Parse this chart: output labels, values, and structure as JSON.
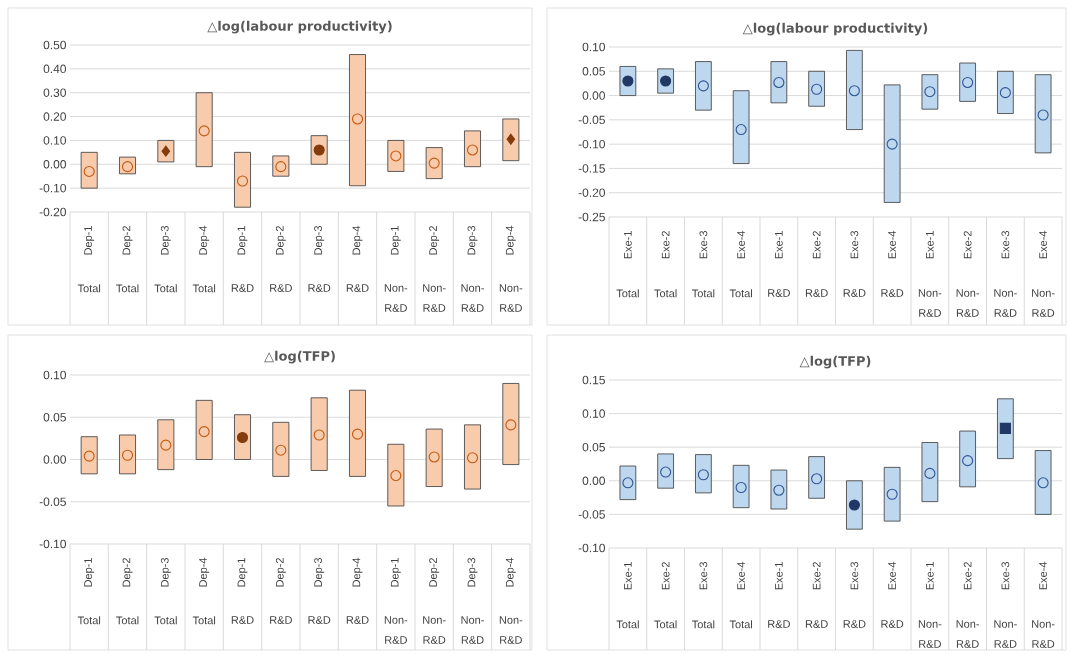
{
  "chart_data": [
    {
      "type": "bar",
      "title": "△log(labour productivity)",
      "grid": "y",
      "categories": [
        "Dep-1",
        "Dep-2",
        "Dep-3",
        "Dep-4",
        "Dep-1",
        "Dep-2",
        "Dep-3",
        "Dep-4",
        "Dep-1",
        "Dep-2",
        "Dep-3",
        "Dep-4"
      ],
      "annotations": [
        "Total",
        "Total",
        "Total",
        "Total",
        "R&D",
        "R&D",
        "R&D",
        "R&D",
        "Non-R&D",
        "Non-R&D",
        "Non-R&D",
        "Non-R&D"
      ],
      "ylim": [
        -0.2,
        0.5
      ],
      "yticks": [
        {
          "value": -0.2,
          "label": "-0.20"
        },
        {
          "value": -0.1,
          "label": "-0.10"
        },
        {
          "value": 0,
          "label": "0.00"
        },
        {
          "value": 0.1,
          "label": "0.10"
        },
        {
          "value": 0.2,
          "label": "0.20"
        },
        {
          "value": 0.3,
          "label": "0.30"
        },
        {
          "value": 0.4,
          "label": "0.40"
        },
        {
          "value": 0.5,
          "label": "0.50"
        }
      ],
      "series": [
        {
          "type": "bar",
          "color": "#f8cbad",
          "base": [
            -0.1,
            -0.04,
            0.01,
            -0.01,
            -0.18,
            -0.05,
            0.0,
            -0.09,
            -0.03,
            -0.06,
            -0.01,
            0.015
          ],
          "values": [
            0.15,
            0.07,
            0.09,
            0.31,
            0.23,
            0.085,
            0.12,
            0.55,
            0.13,
            0.13,
            0.15,
            0.175
          ]
        },
        {
          "type": "scatter",
          "marker": "circle",
          "color": "#c55a11",
          "values": [
            -0.03,
            -0.01,
            null,
            0.14,
            -0.07,
            -0.01,
            null,
            0.19,
            0.035,
            0.005,
            0.06,
            null
          ]
        },
        {
          "type": "scatter",
          "marker": "diamond",
          "color": "#843c0c",
          "values": [
            null,
            null,
            0.055,
            null,
            null,
            null,
            null,
            null,
            null,
            null,
            null,
            0.105
          ]
        },
        {
          "type": "scatter",
          "marker": "circle",
          "color": "#843c0c",
          "values": [
            null,
            null,
            null,
            null,
            null,
            null,
            0.06,
            null,
            null,
            null,
            null,
            null
          ]
        }
      ]
    },
    {
      "type": "bar",
      "title": "△log(labour productivity)",
      "grid": "y",
      "categories": [
        "Exe-1",
        "Exe-2",
        "Exe-3",
        "Exe-4",
        "Exe-1",
        "Exe-2",
        "Exe-3",
        "Exe-4",
        "Exe-1",
        "Exe-2",
        "Exe-3",
        "Exe-4"
      ],
      "annotations": [
        "Total",
        "Total",
        "Total",
        "Total",
        "R&D",
        "R&D",
        "R&D",
        "R&D",
        "Non-R&D",
        "Non-R&D",
        "Non-R&D",
        "Non-R&D"
      ],
      "ylim": [
        -0.25,
        0.1
      ],
      "yticks": [
        {
          "value": -0.25,
          "label": "-0.25"
        },
        {
          "value": -0.2,
          "label": "-0.20"
        },
        {
          "value": -0.15,
          "label": "-0.15"
        },
        {
          "value": -0.1,
          "label": "-0.10"
        },
        {
          "value": -0.05,
          "label": "-0.05"
        },
        {
          "value": 0,
          "label": "0.00"
        },
        {
          "value": 0.05,
          "label": "0.05"
        },
        {
          "value": 0.1,
          "label": "0.10"
        }
      ],
      "series": [
        {
          "type": "bar",
          "color": "#bdd7ee",
          "base": [
            0.0,
            0.005,
            -0.03,
            -0.14,
            -0.015,
            -0.022,
            -0.07,
            -0.22,
            -0.028,
            -0.012,
            -0.037,
            -0.118
          ],
          "values": [
            0.06,
            0.05,
            0.1,
            0.15,
            0.085,
            0.072,
            0.163,
            0.242,
            0.071,
            0.079,
            0.087,
            0.161
          ]
        },
        {
          "type": "scatter",
          "marker": "circle",
          "color": "#2f5597",
          "values": [
            null,
            null,
            0.02,
            -0.07,
            0.027,
            0.013,
            0.01,
            -0.1,
            0.008,
            0.027,
            0.006,
            -0.04
          ]
        },
        {
          "type": "scatter",
          "marker": "circle",
          "color": "#1f3864",
          "values": [
            0.03,
            0.03,
            null,
            null,
            null,
            null,
            null,
            null,
            null,
            null,
            null,
            null
          ]
        }
      ]
    },
    {
      "type": "bar",
      "title": "△log(TFP)",
      "grid": "y",
      "categories": [
        "Dep-1",
        "Dep-2",
        "Dep-3",
        "Dep-4",
        "Dep-1",
        "Dep-2",
        "Dep-3",
        "Dep-4",
        "Dep-1",
        "Dep-2",
        "Dep-3",
        "Dep-4"
      ],
      "annotations": [
        "Total",
        "Total",
        "Total",
        "Total",
        "R&D",
        "R&D",
        "R&D",
        "R&D",
        "Non-R&D",
        "Non-R&D",
        "Non-R&D",
        "Non-R&D"
      ],
      "ylim": [
        -0.1,
        0.1
      ],
      "yticks": [
        {
          "value": -0.1,
          "label": "-0.10"
        },
        {
          "value": -0.05,
          "label": "-0.05"
        },
        {
          "value": 0,
          "label": "0.00"
        },
        {
          "value": 0.05,
          "label": "0.05"
        },
        {
          "value": 0.1,
          "label": "0.10"
        }
      ],
      "series": [
        {
          "type": "bar",
          "color": "#f8cbad",
          "base": [
            -0.017,
            -0.017,
            -0.012,
            0.0,
            0.0,
            -0.02,
            -0.013,
            -0.02,
            -0.055,
            -0.032,
            -0.035,
            -0.006
          ],
          "values": [
            0.044,
            0.046,
            0.059,
            0.07,
            0.053,
            0.064,
            0.086,
            0.102,
            0.073,
            0.068,
            0.076,
            0.096
          ]
        },
        {
          "type": "scatter",
          "marker": "circle",
          "color": "#c55a11",
          "values": [
            0.004,
            0.005,
            0.017,
            0.033,
            null,
            0.011,
            0.029,
            0.03,
            -0.019,
            0.003,
            0.002,
            0.041
          ]
        },
        {
          "type": "scatter",
          "marker": "circle",
          "color": "#843c0c",
          "values": [
            null,
            null,
            null,
            null,
            0.026,
            null,
            null,
            null,
            null,
            null,
            null,
            null
          ]
        }
      ]
    },
    {
      "type": "bar",
      "title": "△log(TFP)",
      "grid": "y",
      "categories": [
        "Exe-1",
        "Exe-2",
        "Exe-3",
        "Exe-4",
        "Exe-1",
        "Exe-2",
        "Exe-3",
        "Exe-4",
        "Exe-1",
        "Exe-2",
        "Exe-3",
        "Exe-4"
      ],
      "annotations": [
        "Total",
        "Total",
        "Total",
        "Total",
        "R&D",
        "R&D",
        "R&D",
        "R&D",
        "Non-R&D",
        "Non-R&D",
        "Non-R&D",
        "Non-R&D"
      ],
      "ylim": [
        -0.1,
        0.15
      ],
      "yticks": [
        {
          "value": -0.1,
          "label": "-0.10"
        },
        {
          "value": -0.05,
          "label": "-0.05"
        },
        {
          "value": 0,
          "label": "0.00"
        },
        {
          "value": 0.05,
          "label": "0.05"
        },
        {
          "value": 0.1,
          "label": "0.10"
        },
        {
          "value": 0.15,
          "label": "0.15"
        }
      ],
      "series": [
        {
          "type": "bar",
          "color": "#bdd7ee",
          "base": [
            -0.028,
            -0.011,
            -0.018,
            -0.04,
            -0.042,
            -0.026,
            -0.072,
            -0.06,
            -0.031,
            -0.009,
            0.033,
            -0.05
          ],
          "values": [
            0.05,
            0.051,
            0.057,
            0.063,
            0.058,
            0.062,
            0.072,
            0.08,
            0.088,
            0.083,
            0.089,
            0.095
          ]
        },
        {
          "type": "scatter",
          "marker": "circle",
          "color": "#2f5597",
          "values": [
            -0.003,
            0.013,
            0.009,
            -0.01,
            -0.014,
            0.003,
            null,
            -0.02,
            0.011,
            0.03,
            null,
            -0.003
          ]
        },
        {
          "type": "scatter",
          "marker": "circle",
          "color": "#1f3864",
          "values": [
            null,
            null,
            null,
            null,
            null,
            null,
            -0.036,
            null,
            null,
            null,
            null,
            null
          ]
        },
        {
          "type": "scatter",
          "marker": "square",
          "color": "#1f3864",
          "values": [
            null,
            null,
            null,
            null,
            null,
            null,
            null,
            null,
            null,
            null,
            0.078,
            null
          ]
        }
      ]
    }
  ]
}
